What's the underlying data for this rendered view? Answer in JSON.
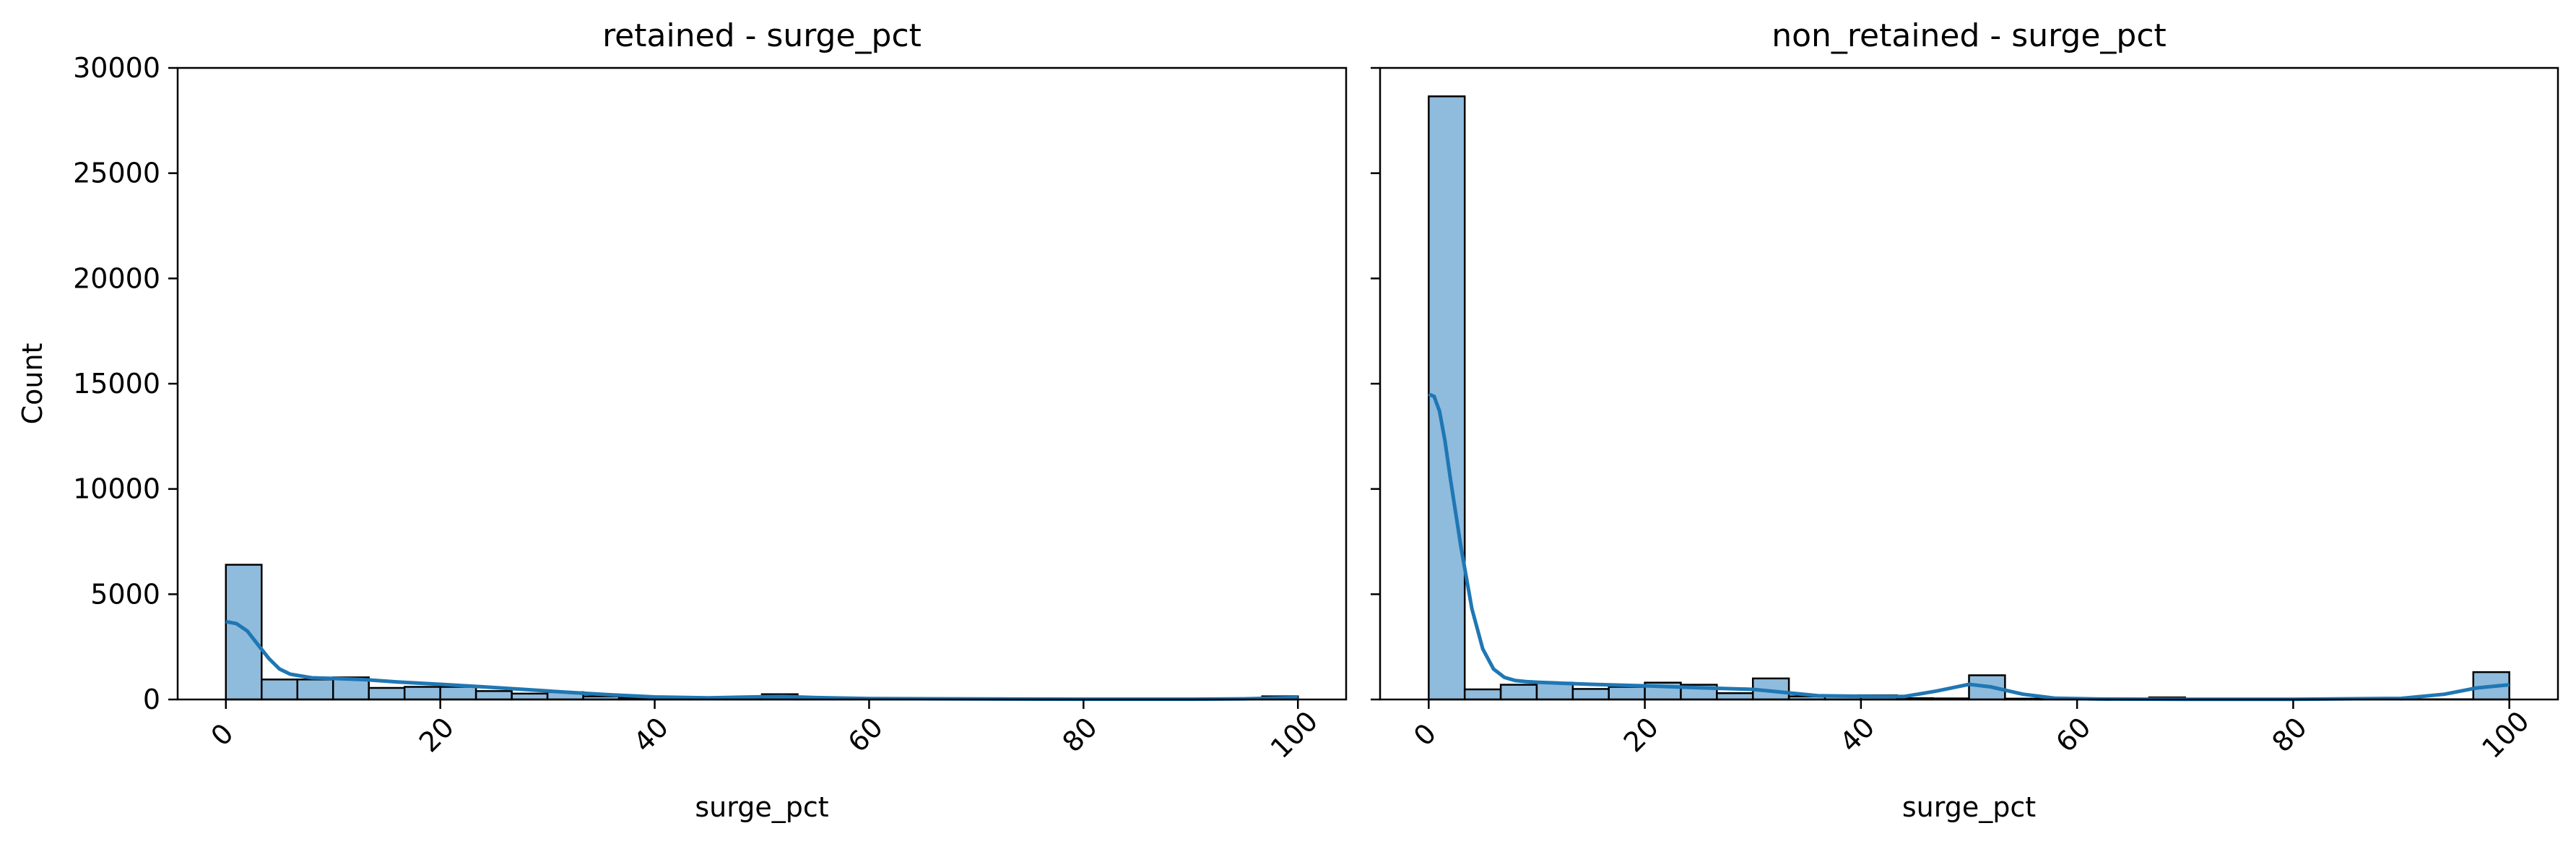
{
  "chart_data": [
    {
      "type": "bar",
      "title": "retained - surge_pct",
      "xlabel": "surge_pct",
      "ylabel": "Count",
      "xlim": [
        -4.5,
        104.5
      ],
      "ylim": [
        0,
        30000
      ],
      "xticks": [
        0,
        20,
        40,
        60,
        80,
        100
      ],
      "yticks": [
        0,
        5000,
        10000,
        15000,
        20000,
        25000,
        30000
      ],
      "grid": false,
      "bin_width": 3.333,
      "colors": {
        "bar_fill": "#8fbbdd",
        "bar_edge": "#000000",
        "kde": "#1f77b4"
      },
      "bins": [
        {
          "x0": 0.0,
          "x1": 3.333,
          "count": 6400
        },
        {
          "x0": 3.333,
          "x1": 6.667,
          "count": 950
        },
        {
          "x0": 6.667,
          "x1": 10.0,
          "count": 950
        },
        {
          "x0": 10.0,
          "x1": 13.333,
          "count": 1050
        },
        {
          "x0": 13.333,
          "x1": 16.667,
          "count": 550
        },
        {
          "x0": 16.667,
          "x1": 20.0,
          "count": 600
        },
        {
          "x0": 20.0,
          "x1": 23.333,
          "count": 600
        },
        {
          "x0": 23.333,
          "x1": 26.667,
          "count": 400
        },
        {
          "x0": 26.667,
          "x1": 30.0,
          "count": 280
        },
        {
          "x0": 30.0,
          "x1": 33.333,
          "count": 350
        },
        {
          "x0": 33.333,
          "x1": 36.667,
          "count": 150
        },
        {
          "x0": 36.667,
          "x1": 40.0,
          "count": 90
        },
        {
          "x0": 40.0,
          "x1": 43.333,
          "count": 70
        },
        {
          "x0": 43.333,
          "x1": 46.667,
          "count": 40
        },
        {
          "x0": 46.667,
          "x1": 50.0,
          "count": 60
        },
        {
          "x0": 50.0,
          "x1": 53.333,
          "count": 250
        },
        {
          "x0": 53.333,
          "x1": 56.667,
          "count": 30
        },
        {
          "x0": 56.667,
          "x1": 60.0,
          "count": 20
        },
        {
          "x0": 60.0,
          "x1": 63.333,
          "count": 20
        },
        {
          "x0": 63.333,
          "x1": 66.667,
          "count": 15
        },
        {
          "x0": 66.667,
          "x1": 70.0,
          "count": 25
        },
        {
          "x0": 70.0,
          "x1": 73.333,
          "count": 10
        },
        {
          "x0": 73.333,
          "x1": 76.667,
          "count": 10
        },
        {
          "x0": 76.667,
          "x1": 80.0,
          "count": 10
        },
        {
          "x0": 80.0,
          "x1": 83.333,
          "count": 5
        },
        {
          "x0": 83.333,
          "x1": 86.667,
          "count": 5
        },
        {
          "x0": 86.667,
          "x1": 90.0,
          "count": 5
        },
        {
          "x0": 90.0,
          "x1": 93.333,
          "count": 5
        },
        {
          "x0": 93.333,
          "x1": 96.667,
          "count": 5
        },
        {
          "x0": 96.667,
          "x1": 100.0,
          "count": 150
        }
      ],
      "kde": {
        "x": [
          0,
          1,
          2,
          3,
          4,
          5,
          6,
          8,
          10,
          13,
          16,
          20,
          24,
          28,
          32,
          36,
          40,
          45,
          50,
          52,
          55,
          60,
          70,
          80,
          90,
          95,
          98,
          100
        ],
        "y": [
          3700,
          3600,
          3250,
          2600,
          1950,
          1450,
          1200,
          1030,
          1000,
          940,
          830,
          720,
          600,
          470,
          340,
          220,
          120,
          80,
          130,
          140,
          90,
          40,
          25,
          15,
          15,
          30,
          70,
          90
        ]
      }
    },
    {
      "type": "bar",
      "title": "non_retained - surge_pct",
      "xlabel": "surge_pct",
      "ylabel": "",
      "xlim": [
        -4.5,
        104.5
      ],
      "ylim": [
        0,
        30000
      ],
      "xticks": [
        0,
        20,
        40,
        60,
        80,
        100
      ],
      "yticks": [
        0,
        5000,
        10000,
        15000,
        20000,
        25000,
        30000
      ],
      "show_ytick_labels": false,
      "grid": false,
      "bin_width": 3.333,
      "colors": {
        "bar_fill": "#8fbbdd",
        "bar_edge": "#000000",
        "kde": "#1f77b4"
      },
      "bins": [
        {
          "x0": 0.0,
          "x1": 3.333,
          "count": 28650
        },
        {
          "x0": 3.333,
          "x1": 6.667,
          "count": 480
        },
        {
          "x0": 6.667,
          "x1": 10.0,
          "count": 700
        },
        {
          "x0": 10.0,
          "x1": 13.333,
          "count": 800
        },
        {
          "x0": 13.333,
          "x1": 16.667,
          "count": 500
        },
        {
          "x0": 16.667,
          "x1": 20.0,
          "count": 600
        },
        {
          "x0": 20.0,
          "x1": 23.333,
          "count": 800
        },
        {
          "x0": 23.333,
          "x1": 26.667,
          "count": 700
        },
        {
          "x0": 26.667,
          "x1": 30.0,
          "count": 300
        },
        {
          "x0": 30.0,
          "x1": 33.333,
          "count": 1000
        },
        {
          "x0": 33.333,
          "x1": 36.667,
          "count": 150
        },
        {
          "x0": 36.667,
          "x1": 40.0,
          "count": 200
        },
        {
          "x0": 40.0,
          "x1": 43.333,
          "count": 200
        },
        {
          "x0": 43.333,
          "x1": 46.667,
          "count": 60
        },
        {
          "x0": 46.667,
          "x1": 50.0,
          "count": 50
        },
        {
          "x0": 50.0,
          "x1": 53.333,
          "count": 1150
        },
        {
          "x0": 53.333,
          "x1": 56.667,
          "count": 40
        },
        {
          "x0": 56.667,
          "x1": 60.0,
          "count": 30
        },
        {
          "x0": 60.0,
          "x1": 63.333,
          "count": 25
        },
        {
          "x0": 63.333,
          "x1": 66.667,
          "count": 30
        },
        {
          "x0": 66.667,
          "x1": 70.0,
          "count": 100
        },
        {
          "x0": 70.0,
          "x1": 73.333,
          "count": 10
        },
        {
          "x0": 73.333,
          "x1": 76.667,
          "count": 10
        },
        {
          "x0": 76.667,
          "x1": 80.0,
          "count": 10
        },
        {
          "x0": 80.0,
          "x1": 83.333,
          "count": 10
        },
        {
          "x0": 83.333,
          "x1": 86.667,
          "count": 10
        },
        {
          "x0": 86.667,
          "x1": 90.0,
          "count": 10
        },
        {
          "x0": 90.0,
          "x1": 93.333,
          "count": 10
        },
        {
          "x0": 93.333,
          "x1": 96.667,
          "count": 10
        },
        {
          "x0": 96.667,
          "x1": 100.0,
          "count": 1300
        }
      ],
      "kde": {
        "x": [
          0,
          0.5,
          1,
          1.5,
          2,
          3,
          4,
          5,
          6,
          7,
          8,
          9,
          10,
          12,
          15,
          20,
          25,
          30,
          33,
          36,
          40,
          44,
          47,
          50,
          52,
          55,
          58,
          62,
          70,
          80,
          90,
          94,
          97,
          100
        ],
        "y": [
          14500,
          14400,
          13700,
          12300,
          10500,
          7200,
          4300,
          2400,
          1450,
          1050,
          900,
          850,
          820,
          780,
          720,
          650,
          560,
          480,
          330,
          180,
          150,
          140,
          400,
          720,
          600,
          250,
          60,
          20,
          10,
          10,
          50,
          250,
          550,
          700
        ]
      }
    }
  ]
}
